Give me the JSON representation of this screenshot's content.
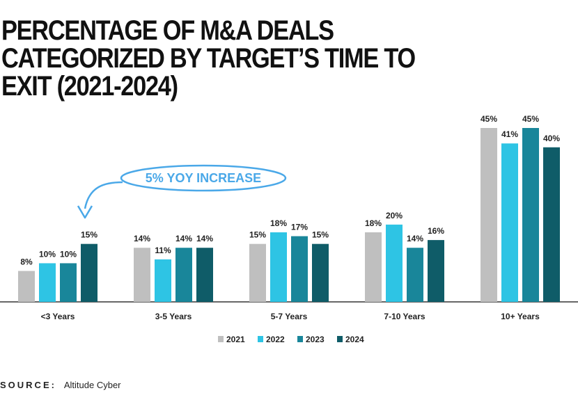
{
  "chart_data": {
    "type": "bar",
    "title": "PERCENTAGE OF M&A DEALS CATEGORIZED BY TARGET’S TIME TO EXIT (2021-2024)",
    "categories": [
      "<3 Years",
      "3-5 Years",
      "5-7 Years",
      "7-10 Years",
      "10+ Years"
    ],
    "series": [
      {
        "name": "2021",
        "values": [
          8,
          14,
          15,
          18,
          45
        ],
        "labels": [
          "8%",
          "14%",
          "15%",
          "18%",
          "45%"
        ],
        "color": "#bfbfbf"
      },
      {
        "name": "2022",
        "values": [
          10,
          11,
          18,
          20,
          41
        ],
        "labels": [
          "10%",
          "11%",
          "18%",
          "20%",
          "41%"
        ],
        "color": "#2ec4e4"
      },
      {
        "name": "2023",
        "values": [
          10,
          14,
          17,
          14,
          45
        ],
        "labels": [
          "10%",
          "14%",
          "17%",
          "14%",
          "45%"
        ],
        "color": "#19869a"
      },
      {
        "name": "2024",
        "values": [
          15,
          14,
          15,
          16,
          40
        ],
        "labels": [
          "15%",
          "14%",
          "15%",
          "16%",
          "40%"
        ],
        "color": "#0f5c68"
      }
    ],
    "ylim": [
      0,
      45
    ],
    "xlabel": "",
    "ylabel": "",
    "grid": false,
    "legend": "bottom-center",
    "annotation": "5% YOY INCREASE"
  },
  "source": {
    "label": "SOURCE:",
    "value": "Altitude Cyber"
  },
  "colors": {
    "annotation": "#4aa8e8"
  }
}
